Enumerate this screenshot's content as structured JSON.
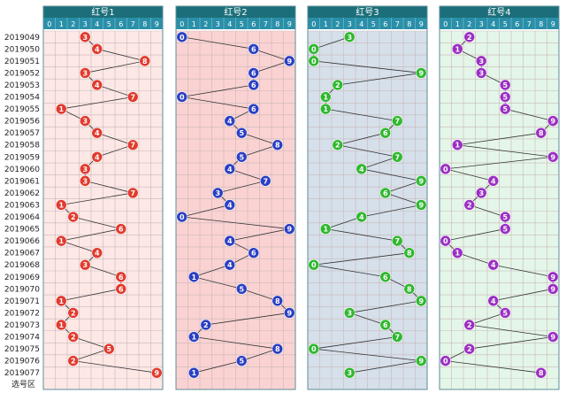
{
  "chart_data": [
    {
      "type": "line",
      "title": "红号1",
      "x": [
        "2019049",
        "2019050",
        "2019051",
        "2019052",
        "2019053",
        "2019054",
        "2019055",
        "2019056",
        "2019057",
        "2019058",
        "2019059",
        "2019060",
        "2019061",
        "2019062",
        "2019063",
        "2019064",
        "2019065",
        "2019066",
        "2019067",
        "2019068",
        "2019069",
        "2019070",
        "2019071",
        "2019072",
        "2019073",
        "2019074",
        "2019075",
        "2019076",
        "2019077"
      ],
      "values": [
        3,
        4,
        8,
        3,
        4,
        7,
        1,
        3,
        4,
        7,
        4,
        3,
        3,
        7,
        1,
        2,
        6,
        1,
        4,
        3,
        6,
        6,
        1,
        2,
        1,
        2,
        5,
        2,
        9
      ],
      "categories": [
        "0",
        "1",
        "2",
        "3",
        "4",
        "5",
        "6",
        "7",
        "8",
        "9"
      ],
      "footer_label": "选号区",
      "colors": {
        "ball": "#e23a2e",
        "bg": "#fde8e6",
        "header": "#1c6f7a"
      }
    },
    {
      "type": "line",
      "title": "红号2",
      "x": [
        "2019049",
        "2019050",
        "2019051",
        "2019052",
        "2019053",
        "2019054",
        "2019055",
        "2019056",
        "2019057",
        "2019058",
        "2019059",
        "2019060",
        "2019061",
        "2019062",
        "2019063",
        "2019064",
        "2019065",
        "2019066",
        "2019067",
        "2019068",
        "2019069",
        "2019070",
        "2019071",
        "2019072",
        "2019073",
        "2019074",
        "2019075",
        "2019076",
        "2019077"
      ],
      "values": [
        0,
        6,
        9,
        6,
        6,
        0,
        6,
        4,
        5,
        8,
        5,
        4,
        7,
        3,
        4,
        0,
        9,
        4,
        6,
        4,
        1,
        5,
        8,
        9,
        2,
        1,
        8,
        5,
        1
      ],
      "categories": [
        "0",
        "1",
        "2",
        "3",
        "4",
        "5",
        "6",
        "7",
        "8",
        "9"
      ],
      "footer_label": "选号区",
      "colors": {
        "ball": "#2b3fc4",
        "bg": "#fbd2d2",
        "header": "#1c6f7a"
      }
    },
    {
      "type": "line",
      "title": "红号3",
      "x": [
        "2019049",
        "2019050",
        "2019051",
        "2019052",
        "2019053",
        "2019054",
        "2019055",
        "2019056",
        "2019057",
        "2019058",
        "2019059",
        "2019060",
        "2019061",
        "2019062",
        "2019063",
        "2019064",
        "2019065",
        "2019066",
        "2019067",
        "2019068",
        "2019069",
        "2019070",
        "2019071",
        "2019072",
        "2019073",
        "2019074",
        "2019075",
        "2019076",
        "2019077"
      ],
      "values": [
        3,
        0,
        0,
        9,
        2,
        1,
        1,
        7,
        6,
        2,
        7,
        4,
        9,
        6,
        9,
        4,
        1,
        7,
        8,
        0,
        6,
        8,
        9,
        3,
        6,
        7,
        0,
        9,
        3
      ],
      "categories": [
        "0",
        "1",
        "2",
        "3",
        "4",
        "5",
        "6",
        "7",
        "8",
        "9"
      ],
      "footer_label": "选号区",
      "colors": {
        "ball": "#2fb82f",
        "bg": "#d6e0ea",
        "header": "#1c6f7a"
      }
    },
    {
      "type": "line",
      "title": "红号4",
      "x": [
        "2019049",
        "2019050",
        "2019051",
        "2019052",
        "2019053",
        "2019054",
        "2019055",
        "2019056",
        "2019057",
        "2019058",
        "2019059",
        "2019060",
        "2019061",
        "2019062",
        "2019063",
        "2019064",
        "2019065",
        "2019066",
        "2019067",
        "2019068",
        "2019069",
        "2019070",
        "2019071",
        "2019072",
        "2019073",
        "2019074",
        "2019075",
        "2019076",
        "2019077"
      ],
      "values": [
        2,
        1,
        3,
        3,
        5,
        5,
        5,
        9,
        8,
        1,
        9,
        0,
        4,
        3,
        2,
        5,
        5,
        0,
        1,
        4,
        9,
        9,
        4,
        5,
        2,
        9,
        2,
        0,
        8
      ],
      "categories": [
        "0",
        "1",
        "2",
        "3",
        "4",
        "5",
        "6",
        "7",
        "8",
        "9"
      ],
      "footer_label": "选号区",
      "colors": {
        "ball": "#9b2fc4",
        "bg": "#e4f6e8",
        "header": "#1c6f7a"
      }
    }
  ]
}
